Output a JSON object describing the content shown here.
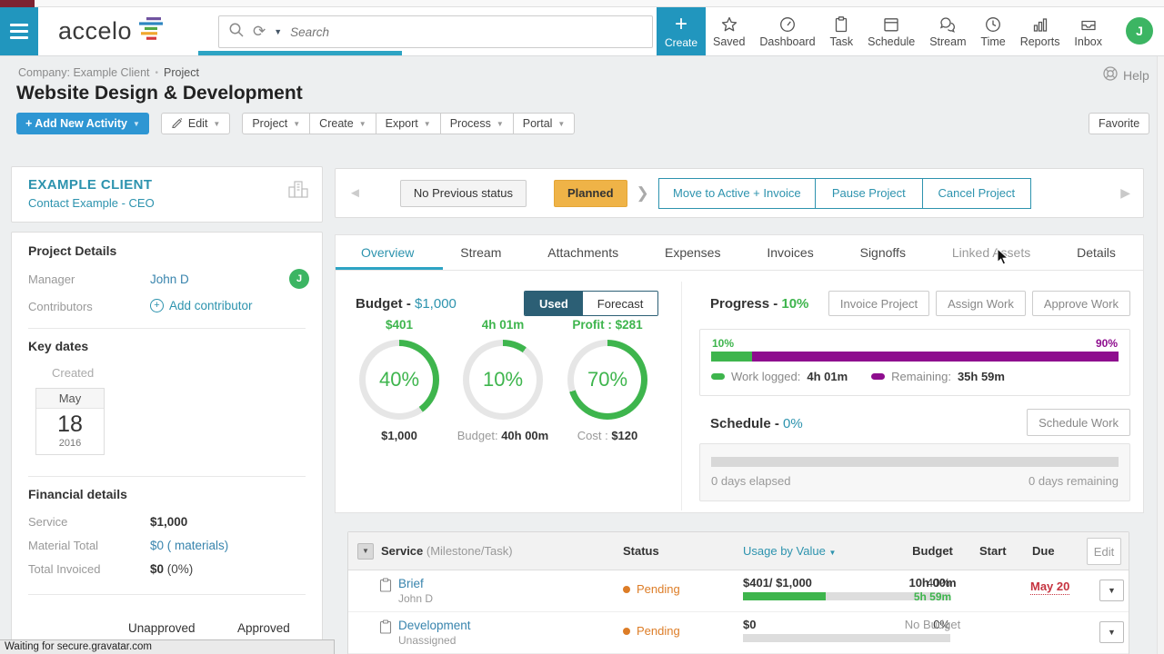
{
  "colors": {
    "brand_teal": "#2196be",
    "teal_text": "#2d93ae",
    "link_blue": "#3884ad",
    "green": "#3eb54d",
    "purple": "#8e0d8e",
    "amber_status": "#efb347",
    "orange_pending": "#dd7d27",
    "red_due": "#c63440",
    "primary_button_blue": "#2e96d3",
    "toggle_dark": "#2c5f75",
    "avatar_green": "#3cb563"
  },
  "topbar": {
    "logo_text": "accelo",
    "search_placeholder": "Search",
    "create_label": "Create",
    "nav_items": [
      {
        "label": "Saved"
      },
      {
        "label": "Dashboard"
      },
      {
        "label": "Task"
      },
      {
        "label": "Schedule"
      },
      {
        "label": "Stream"
      },
      {
        "label": "Time"
      },
      {
        "label": "Reports"
      },
      {
        "label": "Inbox"
      }
    ],
    "avatar_initial": "J"
  },
  "header": {
    "breadcrumb_company": "Company: Example Client",
    "breadcrumb_separator": "•",
    "breadcrumb_page": "Project",
    "help_label": "Help",
    "title": "Website Design & Development",
    "add_activity_label": "+ Add New Activity",
    "edit_label": "Edit",
    "menu_buttons": [
      {
        "label": "Project"
      },
      {
        "label": "Create"
      },
      {
        "label": "Export"
      },
      {
        "label": "Process"
      },
      {
        "label": "Portal"
      }
    ],
    "favorite_label": "Favorite"
  },
  "sidebar": {
    "client_name": "EXAMPLE CLIENT",
    "client_contact": "Contact Example - CEO",
    "project_details": {
      "heading": "Project Details",
      "manager_label": "Manager",
      "manager_name": "John D",
      "manager_avatar_initial": "J",
      "contributors_label": "Contributors",
      "add_contributor_label": "Add contributor"
    },
    "key_dates": {
      "heading": "Key dates",
      "created_label": "Created",
      "month": "May",
      "day": "18",
      "year": "2016"
    },
    "financial": {
      "heading": "Financial details",
      "service_label": "Service",
      "service_value": "$1,000",
      "material_label": "Material Total",
      "material_value": "$0 ( materials)",
      "invoiced_label": "Total Invoiced",
      "invoiced_value": "$0",
      "invoiced_sub": "(0%)"
    },
    "unapproved_label": "Unapproved",
    "approved_label": "Approved"
  },
  "status_flow": {
    "previous_label": "No Previous status",
    "current_label": "Planned",
    "actions": [
      {
        "label": "Move to Active + Invoice"
      },
      {
        "label": "Pause Project"
      },
      {
        "label": "Cancel Project"
      }
    ]
  },
  "tabs": [
    {
      "label": "Overview"
    },
    {
      "label": "Stream"
    },
    {
      "label": "Attachments"
    },
    {
      "label": "Expenses"
    },
    {
      "label": "Invoices"
    },
    {
      "label": "Signoffs"
    },
    {
      "label": "Linked Assets"
    },
    {
      "label": "Details"
    }
  ],
  "budget": {
    "heading": "Budget -",
    "amount": "$1,000",
    "toggle_used": "Used",
    "toggle_forecast": "Forecast",
    "donuts": [
      {
        "top_label": "$401",
        "percent_label": "40%",
        "percent": 40,
        "bottom_label": "",
        "bottom_value": "$1,000"
      },
      {
        "top_label": "4h 01m",
        "percent_label": "10%",
        "percent": 10,
        "bottom_label": "Budget: ",
        "bottom_value": "40h 00m"
      },
      {
        "top_label": "Profit : $281",
        "percent_label": "70%",
        "percent": 70,
        "bottom_label": "Cost : ",
        "bottom_value": "$120"
      }
    ]
  },
  "progress": {
    "heading": "Progress -",
    "percent_label": "10%",
    "buttons": [
      {
        "label": "Invoice Project"
      },
      {
        "label": "Assign Work"
      },
      {
        "label": "Approve Work"
      }
    ],
    "bar_left_label": "10%",
    "bar_right_label": "90%",
    "logged_pct": 10,
    "remaining_pct": 90,
    "legend_logged_label": "Work logged:",
    "legend_logged_value": "4h 01m",
    "legend_remaining_label": "Remaining:",
    "legend_remaining_value": "35h 59m"
  },
  "schedule": {
    "heading": "Schedule -",
    "percent_label": "0%",
    "button_label": "Schedule Work",
    "elapsed_label": "0 days elapsed",
    "remaining_label": "0 days remaining"
  },
  "work_table": {
    "service_header": "Service",
    "service_sub_header": "(Milestone/Task)",
    "status_header": "Status",
    "usage_header": "Usage by Value",
    "budget_header": "Budget",
    "start_header": "Start",
    "due_header": "Due",
    "edit_label": "Edit",
    "rows": [
      {
        "name": "Brief",
        "assignee": "John D",
        "status": "Pending",
        "usage_text": "$401/ $1,000",
        "usage_pct_label": "40%",
        "usage_pct": 40,
        "budget": "10h 00m",
        "budget_sub": "5h 59m",
        "due": "May 20"
      },
      {
        "name": "Development",
        "assignee": "Unassigned",
        "status": "Pending",
        "usage_text": "$0",
        "usage_pct_label": "0%",
        "usage_pct": 0,
        "budget": "No Budget",
        "budget_sub": "",
        "due": ""
      }
    ]
  },
  "status_bar_text": "Waiting for secure.gravatar.com"
}
